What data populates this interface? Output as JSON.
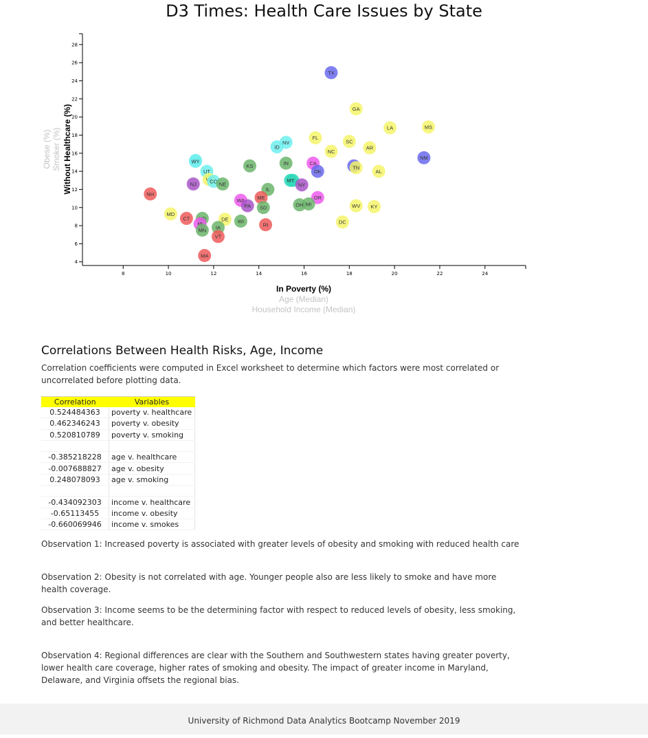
{
  "page": {
    "title": "D3 Times: Health Care Issues by State"
  },
  "chart_data": {
    "type": "scatter",
    "title": "",
    "xlabel": "In Poverty (%)",
    "ylabel": "Without Healthcare (%)",
    "x_axis_labels": [
      {
        "text": "In Poverty (%)",
        "active": true
      },
      {
        "text": "Age (Median)",
        "active": false
      },
      {
        "text": "Household Income (Median)",
        "active": false
      }
    ],
    "y_axis_labels": [
      {
        "text": "Without Healthcare (%)",
        "active": true
      },
      {
        "text": "Smoker (%)",
        "active": false
      },
      {
        "text": "Obese (%)",
        "active": false
      }
    ],
    "xlim": [
      6.2,
      25.8
    ],
    "ylim": [
      3.6,
      29.2
    ],
    "xticks": [
      8,
      10,
      12,
      14,
      16,
      18,
      20,
      22,
      24
    ],
    "yticks": [
      4,
      6,
      8,
      10,
      12,
      14,
      16,
      18,
      20,
      22,
      24,
      26,
      28
    ],
    "grid": false,
    "legend": "none",
    "points": [
      {
        "abbr": "TX",
        "x": 17.2,
        "y": 24.9,
        "color": "#6a6aef"
      },
      {
        "abbr": "GA",
        "x": 18.3,
        "y": 20.9,
        "color": "#f5f56a"
      },
      {
        "abbr": "MS",
        "x": 21.5,
        "y": 18.9,
        "color": "#f5f56a"
      },
      {
        "abbr": "LA",
        "x": 19.8,
        "y": 18.8,
        "color": "#f5f56a"
      },
      {
        "abbr": "FL",
        "x": 16.5,
        "y": 17.7,
        "color": "#f5f56a"
      },
      {
        "abbr": "SC",
        "x": 18.0,
        "y": 17.3,
        "color": "#f5f56a"
      },
      {
        "abbr": "NV",
        "x": 15.2,
        "y": 17.2,
        "color": "#70eeee"
      },
      {
        "abbr": "ID",
        "x": 14.8,
        "y": 16.7,
        "color": "#70eeee"
      },
      {
        "abbr": "AR",
        "x": 18.9,
        "y": 16.6,
        "color": "#f5f56a"
      },
      {
        "abbr": "NC",
        "x": 17.2,
        "y": 16.2,
        "color": "#f5f56a"
      },
      {
        "abbr": "NM",
        "x": 21.3,
        "y": 15.5,
        "color": "#6a6aef"
      },
      {
        "abbr": "AK",
        "x": 11.2,
        "y": 15.2,
        "color": "#70eeee"
      },
      {
        "abbr": "WY",
        "x": 11.2,
        "y": 15.1,
        "color": "#70eeee"
      },
      {
        "abbr": "IN",
        "x": 15.2,
        "y": 14.9,
        "color": "#6bb56b"
      },
      {
        "abbr": "CA",
        "x": 16.4,
        "y": 14.9,
        "color": "#ee5aee"
      },
      {
        "abbr": "KS",
        "x": 13.6,
        "y": 14.6,
        "color": "#6bb56b"
      },
      {
        "abbr": "AZ",
        "x": 18.2,
        "y": 14.6,
        "color": "#6a6aef"
      },
      {
        "abbr": "TN",
        "x": 18.3,
        "y": 14.4,
        "color": "#f5f56a"
      },
      {
        "abbr": "OK",
        "x": 16.6,
        "y": 14.0,
        "color": "#6a6aef"
      },
      {
        "abbr": "UT",
        "x": 11.7,
        "y": 14.0,
        "color": "#70eeee"
      },
      {
        "abbr": "AL",
        "x": 19.3,
        "y": 14.0,
        "color": "#f5f56a"
      },
      {
        "abbr": "VA",
        "x": 11.8,
        "y": 13.1,
        "color": "#f5f56a"
      },
      {
        "abbr": "CO",
        "x": 12.0,
        "y": 12.9,
        "color": "#70eeee"
      },
      {
        "abbr": "MO",
        "x": 15.5,
        "y": 13.0,
        "color": "#2ed8b8"
      },
      {
        "abbr": "MT",
        "x": 15.4,
        "y": 13.0,
        "color": "#2ed8b8"
      },
      {
        "abbr": "NJ",
        "x": 11.1,
        "y": 12.6,
        "color": "#a855c7"
      },
      {
        "abbr": "NE",
        "x": 12.4,
        "y": 12.6,
        "color": "#6bb56b"
      },
      {
        "abbr": "NY",
        "x": 15.9,
        "y": 12.5,
        "color": "#a855c7"
      },
      {
        "abbr": "IL",
        "x": 14.4,
        "y": 12.0,
        "color": "#6bb56b"
      },
      {
        "abbr": "NH",
        "x": 9.2,
        "y": 11.5,
        "color": "#ef5a5a"
      },
      {
        "abbr": "ME",
        "x": 14.1,
        "y": 11.1,
        "color": "#ef5a5a"
      },
      {
        "abbr": "OR",
        "x": 16.6,
        "y": 11.1,
        "color": "#ee5aee"
      },
      {
        "abbr": "WA",
        "x": 13.2,
        "y": 10.8,
        "color": "#ee5aee"
      },
      {
        "abbr": "PA",
        "x": 13.5,
        "y": 10.2,
        "color": "#a855c7"
      },
      {
        "abbr": "MI",
        "x": 16.2,
        "y": 10.4,
        "color": "#6bb56b"
      },
      {
        "abbr": "OH",
        "x": 15.8,
        "y": 10.3,
        "color": "#6bb56b"
      },
      {
        "abbr": "WV",
        "x": 18.3,
        "y": 10.2,
        "color": "#f5f56a"
      },
      {
        "abbr": "SD",
        "x": 14.2,
        "y": 10.0,
        "color": "#6bb56b"
      },
      {
        "abbr": "KY",
        "x": 19.1,
        "y": 10.1,
        "color": "#f5f56a"
      },
      {
        "abbr": "MD",
        "x": 10.1,
        "y": 9.3,
        "color": "#f5f56a"
      },
      {
        "abbr": "CT",
        "x": 10.8,
        "y": 8.8,
        "color": "#ef5a5a"
      },
      {
        "abbr": "ND",
        "x": 11.5,
        "y": 8.8,
        "color": "#6bb56b"
      },
      {
        "abbr": "DE",
        "x": 12.5,
        "y": 8.7,
        "color": "#f5f56a"
      },
      {
        "abbr": "WI",
        "x": 13.2,
        "y": 8.5,
        "color": "#6bb56b"
      },
      {
        "abbr": "DC",
        "x": 17.7,
        "y": 8.4,
        "color": "#f5f56a"
      },
      {
        "abbr": "HI",
        "x": 11.4,
        "y": 8.2,
        "color": "#ee5aee"
      },
      {
        "abbr": "RI",
        "x": 14.3,
        "y": 8.1,
        "color": "#ef5a5a"
      },
      {
        "abbr": "IA",
        "x": 12.2,
        "y": 7.8,
        "color": "#6bb56b"
      },
      {
        "abbr": "MN",
        "x": 11.5,
        "y": 7.5,
        "color": "#6bb56b"
      },
      {
        "abbr": "VT",
        "x": 12.2,
        "y": 6.8,
        "color": "#ef5a5a"
      },
      {
        "abbr": "MA",
        "x": 11.6,
        "y": 4.7,
        "color": "#ef5a5a"
      }
    ]
  },
  "correlations": {
    "heading": "Correlations Between Health Risks, Age, Income",
    "intro": "Correlation coefficients were computed in Excel worksheet to determine which factors were most correlated or uncorrelated before plotting data.",
    "header_color": "#ffff00",
    "columns": [
      "Correlation",
      "Variables"
    ],
    "rows": [
      {
        "value": "0.524484363",
        "variables": "poverty v. healthcare"
      },
      {
        "value": "0.462346243",
        "variables": "poverty v. obesity"
      },
      {
        "value": "0.520810789",
        "variables": "poverty v. smoking"
      },
      {
        "value": "",
        "variables": ""
      },
      {
        "value": "-0.385218228",
        "variables": "age v. healthcare"
      },
      {
        "value": "-0.007688827",
        "variables": "age v. obesity"
      },
      {
        "value": "0.248078093",
        "variables": "age v. smoking"
      },
      {
        "value": "",
        "variables": ""
      },
      {
        "value": "-0.434092303",
        "variables": "income v. healthcare"
      },
      {
        "value": "-0.65113455",
        "variables": "income v. obesity"
      },
      {
        "value": "-0.660069946",
        "variables": "income v. smokes"
      }
    ]
  },
  "observations": [
    "Observation 1: Increased poverty is associated with greater levels of obesity and smoking with reduced health care",
    "Observation 2: Obesity is not correlated with age. Younger people also are less likely to smoke and have more health coverage.",
    "Observation 3: Income seems to be the determining factor with respect to reduced levels of obesity, less smoking, and better healthcare.",
    "Observation 4: Regional differences are clear with the Southern and Southwestern states having greater poverty, lower health care coverage, higher rates of smoking and obesity. The impact of greater income in Maryland, Delaware, and Virginia offsets the regional bias."
  ],
  "footer": {
    "text": "University of Richmond Data Analytics Bootcamp November 2019"
  }
}
